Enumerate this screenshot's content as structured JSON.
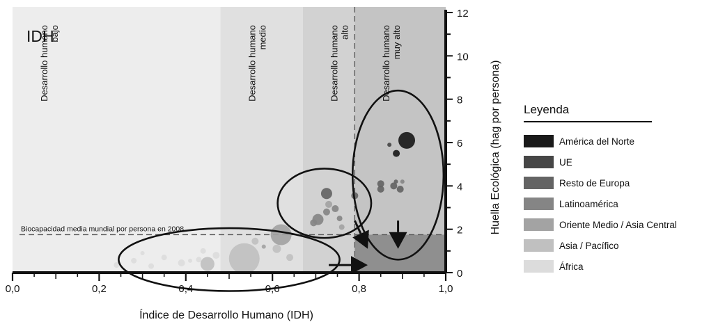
{
  "chart_data": {
    "type": "scatter",
    "panel_label": "IDH",
    "xlabel": "Índice de Desarrollo Humano (IDH)",
    "ylabel": "Huella Ecológica (hag por persona)",
    "xlim": [
      0,
      1.0
    ],
    "ylim": [
      0,
      12
    ],
    "x_ticks": [
      "0,0",
      "0,2",
      "0,4",
      "0,6",
      "0,8",
      "1,0"
    ],
    "y_ticks": [
      "0",
      "2",
      "4",
      "6",
      "8",
      "10",
      "12"
    ],
    "zones": [
      {
        "label_lines": [
          "Desarrollo humano",
          "bajo"
        ],
        "x_range": [
          0,
          0.48
        ],
        "color": "#ededed"
      },
      {
        "label_lines": [
          "Desarrollo humano",
          "medio"
        ],
        "x_range": [
          0.48,
          0.67
        ],
        "color": "#e0e0e0"
      },
      {
        "label_lines": [
          "Desarrollo humano",
          "alto"
        ],
        "x_range": [
          0.67,
          0.79
        ],
        "color": "#d2d2d2"
      },
      {
        "label_lines": [
          "Desarrollo humano",
          "muy alto"
        ],
        "x_range": [
          0.79,
          1.0
        ],
        "color": "#c4c4c4"
      }
    ],
    "reference_lines": [
      {
        "label": "Biocapacidad media mundial por persona en 2008",
        "axis": "y",
        "value": 1.75
      },
      {
        "label": "",
        "axis": "x",
        "value": 0.79
      }
    ],
    "sustainable_quadrant": {
      "x_range": [
        0.79,
        1.0
      ],
      "y_range": [
        0,
        1.75
      ],
      "color": "#8f8f8f"
    },
    "ellipses": [
      {
        "cx": 0.5,
        "cy": 0.6,
        "rx": 0.255,
        "ry": 1.45
      },
      {
        "cx": 0.72,
        "cy": 3.2,
        "rx": 0.108,
        "ry": 1.6
      },
      {
        "cx": 0.89,
        "cy": 4.5,
        "rx": 0.105,
        "ry": 3.9
      }
    ],
    "arrows": [
      {
        "from": [
          0.73,
          0.35
        ],
        "to": [
          0.82,
          0.35
        ]
      },
      {
        "from": [
          0.79,
          2.4
        ],
        "to": [
          0.82,
          1.1
        ]
      },
      {
        "from": [
          0.89,
          2.4
        ],
        "to": [
          0.89,
          1.1
        ]
      }
    ],
    "series": [
      {
        "name": "América del Norte",
        "color": "#1a1a1a",
        "points": [
          {
            "x": 0.91,
            "y": 6.1,
            "r": 12
          },
          {
            "x": 0.886,
            "y": 5.5,
            "r": 5
          }
        ]
      },
      {
        "name": "UE",
        "color": "#464646",
        "points": [
          {
            "x": 0.87,
            "y": 5.9,
            "r": 3
          }
        ]
      },
      {
        "name": "Resto de Europa",
        "color": "#646464",
        "points": [
          {
            "x": 0.85,
            "y": 4.1,
            "r": 5
          },
          {
            "x": 0.85,
            "y": 3.85,
            "r": 5
          },
          {
            "x": 0.88,
            "y": 4.0,
            "r": 5
          },
          {
            "x": 0.895,
            "y": 3.85,
            "r": 5
          },
          {
            "x": 0.885,
            "y": 4.2,
            "r": 3
          },
          {
            "x": 0.79,
            "y": 3.55,
            "r": 5
          },
          {
            "x": 0.725,
            "y": 3.65,
            "r": 8
          }
        ]
      },
      {
        "name": "Latinoamérica",
        "color": "#858585",
        "points": [
          {
            "x": 0.725,
            "y": 2.8,
            "r": 5
          },
          {
            "x": 0.745,
            "y": 2.95,
            "r": 5
          },
          {
            "x": 0.705,
            "y": 2.45,
            "r": 8
          },
          {
            "x": 0.695,
            "y": 2.3,
            "r": 5
          },
          {
            "x": 0.755,
            "y": 2.5,
            "r": 4
          },
          {
            "x": 0.9,
            "y": 4.2,
            "r": 3
          }
        ]
      },
      {
        "name": "Oriente Medio / Asia Central",
        "color": "#a3a3a3",
        "points": [
          {
            "x": 0.62,
            "y": 1.75,
            "r": 15
          },
          {
            "x": 0.73,
            "y": 3.15,
            "r": 5
          },
          {
            "x": 0.76,
            "y": 2.1,
            "r": 4
          },
          {
            "x": 0.58,
            "y": 1.2,
            "r": 3
          }
        ]
      },
      {
        "name": "Asia / Pacífico",
        "color": "#c0c0c0",
        "points": [
          {
            "x": 0.535,
            "y": 0.65,
            "r": 22
          },
          {
            "x": 0.45,
            "y": 0.4,
            "r": 10
          },
          {
            "x": 0.61,
            "y": 1.1,
            "r": 6
          },
          {
            "x": 0.64,
            "y": 0.7,
            "r": 5
          },
          {
            "x": 0.56,
            "y": 1.45,
            "r": 5
          }
        ]
      },
      {
        "name": "África",
        "color": "#dcdcdc",
        "points": [
          {
            "x": 0.24,
            "y": 0.35,
            "r": 4
          },
          {
            "x": 0.28,
            "y": 0.55,
            "r": 4
          },
          {
            "x": 0.32,
            "y": 0.3,
            "r": 4
          },
          {
            "x": 0.35,
            "y": 0.7,
            "r": 4
          },
          {
            "x": 0.39,
            "y": 0.45,
            "r": 5
          },
          {
            "x": 0.43,
            "y": 0.6,
            "r": 4
          },
          {
            "x": 0.47,
            "y": 0.8,
            "r": 5
          },
          {
            "x": 0.3,
            "y": 0.9,
            "r": 3
          },
          {
            "x": 0.44,
            "y": 1.0,
            "r": 4
          },
          {
            "x": 0.41,
            "y": 0.55,
            "r": 3
          }
        ]
      }
    ]
  },
  "legend": {
    "title": "Leyenda",
    "items": [
      {
        "label": "América del Norte",
        "color": "#1a1a1a"
      },
      {
        "label": "UE",
        "color": "#464646"
      },
      {
        "label": "Resto de Europa",
        "color": "#646464"
      },
      {
        "label": "Latinoamérica",
        "color": "#858585"
      },
      {
        "label": "Oriente Medio / Asia Central",
        "color": "#a3a3a3"
      },
      {
        "label": "Asia / Pacífico",
        "color": "#c0c0c0"
      },
      {
        "label": "África",
        "color": "#dcdcdc"
      }
    ]
  }
}
